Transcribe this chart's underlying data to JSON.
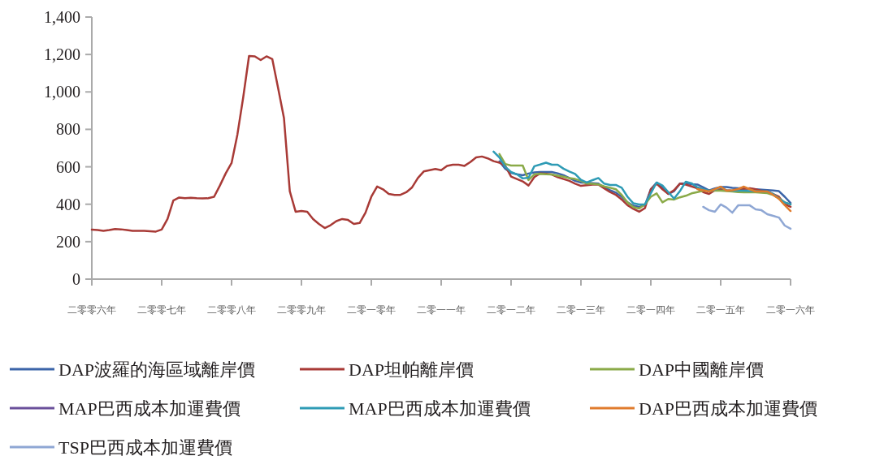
{
  "chart_data": {
    "type": "line",
    "ylim": [
      0,
      1400
    ],
    "yticks": [
      0,
      {
        "value": 200,
        "label": "200"
      },
      {
        "value": 400,
        "label": "400"
      },
      {
        "value": 600,
        "label": "600"
      },
      {
        "value": 800,
        "label": "800"
      },
      {
        "value": 1000,
        "label": "1,000"
      },
      {
        "value": 1200,
        "label": "1,200"
      },
      {
        "value": 1400,
        "label": "1,400"
      }
    ],
    "categories": [
      "二零零六年",
      null,
      null,
      null,
      null,
      null,
      null,
      null,
      null,
      null,
      null,
      null,
      "二零零七年",
      null,
      null,
      null,
      null,
      null,
      null,
      null,
      null,
      null,
      null,
      null,
      "二零零八年",
      null,
      null,
      null,
      null,
      null,
      null,
      null,
      null,
      null,
      null,
      null,
      "二零零九年",
      null,
      null,
      null,
      null,
      null,
      null,
      null,
      null,
      null,
      null,
      null,
      "二零一零年",
      null,
      null,
      null,
      null,
      null,
      null,
      null,
      null,
      null,
      null,
      null,
      "二零一一年",
      null,
      null,
      null,
      null,
      null,
      null,
      null,
      null,
      null,
      null,
      null,
      "二零一二年",
      null,
      null,
      null,
      null,
      null,
      null,
      null,
      null,
      null,
      null,
      null,
      "二零一三年",
      null,
      null,
      null,
      null,
      null,
      null,
      null,
      null,
      null,
      null,
      null,
      "二零一四年",
      null,
      null,
      null,
      null,
      null,
      null,
      null,
      null,
      null,
      null,
      null,
      "二零一五年",
      null,
      null,
      null,
      null,
      null,
      null,
      null,
      null,
      null,
      null,
      null,
      "二零一六年"
    ],
    "grid": false,
    "legend": "bottom",
    "marker": "none",
    "line_style": "solid",
    "series": [
      {
        "name": "DAP波羅的海區域離岸價",
        "color": "#3b64a8",
        "values": [
          null,
          null,
          null,
          null,
          null,
          null,
          null,
          null,
          null,
          null,
          null,
          null,
          null,
          null,
          null,
          null,
          null,
          null,
          null,
          null,
          null,
          null,
          null,
          null,
          null,
          null,
          null,
          null,
          null,
          null,
          null,
          null,
          null,
          null,
          null,
          null,
          null,
          null,
          null,
          null,
          null,
          null,
          null,
          null,
          null,
          null,
          null,
          null,
          null,
          null,
          null,
          null,
          null,
          null,
          null,
          null,
          null,
          null,
          null,
          null,
          null,
          null,
          null,
          null,
          null,
          null,
          null,
          null,
          null,
          null,
          629,
          590,
          568,
          560,
          555,
          564,
          570,
          572,
          572,
          572,
          565,
          555,
          540,
          525,
          516,
          515,
          513,
          510,
          490,
          475,
          462,
          440,
          410,
          392,
          386,
          395,
          480,
          516,
          490,
          455,
          470,
          510,
          512,
          507,
          505,
          490,
          474,
          485,
          492,
          492,
          488,
          485,
          485,
          482,
          480,
          478,
          476,
          474,
          470,
          440,
          407
        ]
      },
      {
        "name": "DAP坦帕離岸價",
        "color": "#a83a36",
        "values": [
          264,
          262,
          258,
          262,
          268,
          266,
          262,
          258,
          258,
          258,
          256,
          254,
          265,
          321,
          420,
          436,
          432,
          435,
          432,
          431,
          432,
          440,
          500,
          565,
          620,
          772,
          971,
          1192,
          1190,
          1170,
          1190,
          1175,
          1020,
          860,
          470,
          360,
          364,
          360,
          321,
          295,
          273,
          288,
          310,
          321,
          316,
          295,
          300,
          355,
          440,
          495,
          480,
          455,
          450,
          450,
          464,
          490,
          540,
          575,
          582,
          588,
          582,
          605,
          611,
          611,
          605,
          625,
          650,
          655,
          645,
          630,
          622,
          605,
          548,
          535,
          522,
          500,
          545,
          565,
          562,
          559,
          545,
          535,
          525,
          510,
          498,
          502,
          505,
          505,
          485,
          465,
          450,
          425,
          395,
          375,
          360,
          380,
          480,
          510,
          480,
          455,
          475,
          510,
          505,
          495,
          485,
          465,
          455,
          475,
          480,
          475,
          472,
          472,
          482,
          485,
          480,
          472,
          466,
          455,
          440,
          400,
          386
        ]
      },
      {
        "name": "DAP中國離岸價",
        "color": "#8aaa48",
        "values": [
          null,
          null,
          null,
          null,
          null,
          null,
          null,
          null,
          null,
          null,
          null,
          null,
          null,
          null,
          null,
          null,
          null,
          null,
          null,
          null,
          null,
          null,
          null,
          null,
          null,
          null,
          null,
          null,
          null,
          null,
          null,
          null,
          null,
          null,
          null,
          null,
          null,
          null,
          null,
          null,
          null,
          null,
          null,
          null,
          null,
          null,
          null,
          null,
          null,
          null,
          null,
          null,
          null,
          null,
          null,
          null,
          null,
          null,
          null,
          null,
          null,
          null,
          null,
          null,
          null,
          null,
          null,
          null,
          null,
          null,
          668,
          615,
          607,
          607,
          607,
          529,
          560,
          562,
          560,
          559,
          553,
          547,
          540,
          535,
          525,
          510,
          509,
          506,
          495,
          488,
          480,
          450,
          410,
          385,
          377,
          400,
          440,
          458,
          410,
          428,
          425,
          437,
          445,
          458,
          465,
          472,
          472,
          472,
          472,
          470,
          468,
          465,
          464,
          464,
          464,
          462,
          459,
          450,
          432,
          410,
          399
        ]
      },
      {
        "name": "MAP巴西成本加運費價",
        "color": "#6a4f9a",
        "values": [
          null,
          null,
          null,
          null,
          null,
          null,
          null,
          null,
          null,
          null,
          null,
          null,
          null,
          null,
          null,
          null,
          null,
          null,
          null,
          null,
          null,
          null,
          null,
          null,
          null,
          null,
          null,
          null,
          null,
          null,
          null,
          null,
          null,
          null,
          null,
          null,
          null,
          null,
          null,
          null,
          null,
          null,
          null,
          null,
          null,
          null,
          null,
          null,
          null,
          null,
          null,
          null,
          null,
          null,
          null,
          null,
          null,
          null,
          null,
          null,
          null,
          null,
          null,
          null,
          null,
          null,
          null,
          null,
          null,
          null,
          null,
          null,
          null,
          null,
          null,
          null,
          null,
          null,
          null,
          null,
          null,
          null,
          null,
          null,
          null,
          null,
          null,
          null,
          null,
          null,
          null,
          null,
          null,
          null,
          null,
          null,
          null,
          null,
          null,
          null,
          null,
          null,
          null,
          null,
          null,
          null,
          null,
          null,
          null,
          null,
          null,
          null,
          null,
          null,
          null,
          null,
          null,
          null,
          null,
          null,
          null
        ]
      },
      {
        "name": "MAP巴西成本加運費價",
        "color": "#2e9bb5",
        "values": [
          null,
          null,
          null,
          null,
          null,
          null,
          null,
          null,
          null,
          null,
          null,
          null,
          null,
          null,
          null,
          null,
          null,
          null,
          null,
          null,
          null,
          null,
          null,
          null,
          null,
          null,
          null,
          null,
          null,
          null,
          null,
          null,
          null,
          null,
          null,
          null,
          null,
          null,
          null,
          null,
          null,
          null,
          null,
          null,
          null,
          null,
          null,
          null,
          null,
          null,
          null,
          null,
          null,
          null,
          null,
          null,
          null,
          null,
          null,
          null,
          null,
          null,
          null,
          null,
          null,
          null,
          null,
          null,
          null,
          681,
          650,
          600,
          572,
          560,
          538,
          542,
          603,
          612,
          622,
          611,
          611,
          590,
          575,
          562,
          530,
          516,
          529,
          540,
          510,
          503,
          503,
          488,
          440,
          405,
          399,
          399,
          459,
          516,
          500,
          465,
          430,
          470,
          520,
          512,
          490,
          480,
          470,
          478,
          490,
          474,
          472,
          472,
          472,
          470,
          470,
          468,
          468,
          455,
          430,
          410,
          399
        ]
      },
      {
        "name": "DAP巴西成本加運費價",
        "color": "#e07b2c",
        "values": [
          null,
          null,
          null,
          null,
          null,
          null,
          null,
          null,
          null,
          null,
          null,
          null,
          null,
          null,
          null,
          null,
          null,
          null,
          null,
          null,
          null,
          null,
          null,
          null,
          null,
          null,
          null,
          null,
          null,
          null,
          null,
          null,
          null,
          null,
          null,
          null,
          null,
          null,
          null,
          null,
          null,
          null,
          null,
          null,
          null,
          null,
          null,
          null,
          null,
          null,
          null,
          null,
          null,
          null,
          null,
          null,
          null,
          null,
          null,
          null,
          null,
          null,
          null,
          null,
          null,
          null,
          null,
          null,
          null,
          null,
          null,
          null,
          null,
          null,
          null,
          null,
          null,
          null,
          null,
          null,
          null,
          null,
          null,
          null,
          null,
          null,
          null,
          null,
          null,
          null,
          null,
          null,
          null,
          null,
          null,
          null,
          null,
          null,
          null,
          null,
          null,
          null,
          null,
          null,
          481,
          475,
          468,
          480,
          494,
          472,
          475,
          481,
          494,
          480,
          468,
          468,
          468,
          450,
          429,
          395,
          364
        ]
      },
      {
        "name": "TSP巴西成本加運費價",
        "color": "#8fa7d4",
        "values": [
          null,
          null,
          null,
          null,
          null,
          null,
          null,
          null,
          null,
          null,
          null,
          null,
          null,
          null,
          null,
          null,
          null,
          null,
          null,
          null,
          null,
          null,
          null,
          null,
          null,
          null,
          null,
          null,
          null,
          null,
          null,
          null,
          null,
          null,
          null,
          null,
          null,
          null,
          null,
          null,
          null,
          null,
          null,
          null,
          null,
          null,
          null,
          null,
          null,
          null,
          null,
          null,
          null,
          null,
          null,
          null,
          null,
          null,
          null,
          null,
          null,
          null,
          null,
          null,
          null,
          null,
          null,
          null,
          null,
          null,
          null,
          null,
          null,
          null,
          null,
          null,
          null,
          null,
          null,
          null,
          null,
          null,
          null,
          null,
          null,
          null,
          null,
          null,
          null,
          null,
          null,
          null,
          null,
          null,
          null,
          null,
          null,
          null,
          null,
          null,
          null,
          null,
          null,
          null,
          null,
          386,
          368,
          360,
          399,
          382,
          355,
          394,
          394,
          394,
          373,
          368,
          347,
          338,
          329,
          286,
          269
        ]
      }
    ]
  }
}
